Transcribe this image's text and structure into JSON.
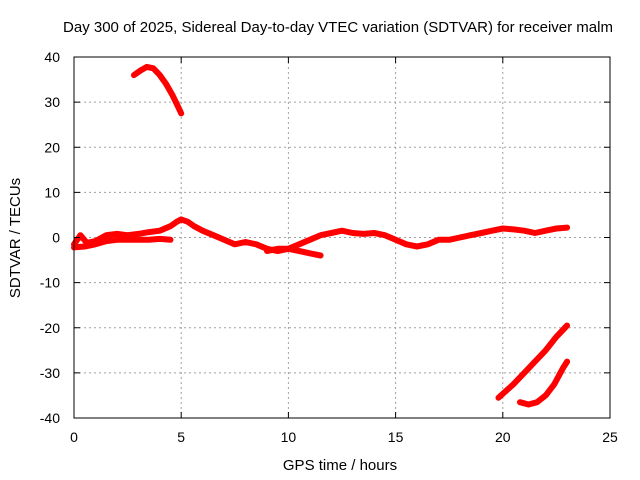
{
  "chart_data": {
    "type": "line",
    "title": "Day 300 of 2025, Sidereal Day-to-day VTEC variation (SDTVAR) for receiver malm",
    "xlabel": "GPS time / hours",
    "ylabel": "SDTVAR / TECUs",
    "xlim": [
      0,
      25
    ],
    "ylim": [
      -40,
      40
    ],
    "xticks": [
      0,
      5,
      10,
      15,
      20,
      25
    ],
    "yticks": [
      -40,
      -30,
      -20,
      -10,
      0,
      10,
      20,
      30,
      40
    ],
    "grid": true,
    "color": "#ff0000",
    "series": [
      {
        "name": "main-trace",
        "points": [
          [
            0.0,
            -1.5
          ],
          [
            0.3,
            0.5
          ],
          [
            0.6,
            -1.2
          ],
          [
            1.0,
            -0.8
          ],
          [
            1.5,
            0.5
          ],
          [
            2.0,
            0.8
          ],
          [
            2.5,
            0.5
          ],
          [
            3.0,
            0.8
          ],
          [
            3.5,
            1.2
          ],
          [
            4.0,
            1.5
          ],
          [
            4.5,
            2.5
          ],
          [
            4.8,
            3.5
          ],
          [
            5.0,
            4.0
          ],
          [
            5.3,
            3.5
          ],
          [
            5.6,
            2.5
          ],
          [
            6.0,
            1.5
          ],
          [
            6.5,
            0.5
          ],
          [
            7.0,
            -0.5
          ],
          [
            7.5,
            -1.5
          ],
          [
            8.0,
            -1.0
          ],
          [
            8.5,
            -1.5
          ],
          [
            9.0,
            -2.5
          ],
          [
            9.5,
            -3.0
          ],
          [
            10.0,
            -2.5
          ],
          [
            10.5,
            -1.5
          ],
          [
            11.0,
            -0.5
          ],
          [
            11.5,
            0.5
          ],
          [
            12.0,
            1.0
          ],
          [
            12.5,
            1.5
          ],
          [
            13.0,
            1.0
          ],
          [
            13.5,
            0.8
          ],
          [
            14.0,
            1.0
          ],
          [
            14.5,
            0.5
          ],
          [
            15.0,
            -0.5
          ],
          [
            15.5,
            -1.5
          ],
          [
            16.0,
            -2.0
          ],
          [
            16.5,
            -1.5
          ],
          [
            17.0,
            -0.5
          ],
          [
            17.5,
            -0.5
          ],
          [
            18.0,
            0.0
          ],
          [
            18.5,
            0.5
          ],
          [
            19.0,
            1.0
          ],
          [
            19.5,
            1.5
          ],
          [
            20.0,
            2.0
          ],
          [
            20.5,
            1.8
          ],
          [
            21.0,
            1.5
          ],
          [
            21.5,
            1.0
          ],
          [
            22.0,
            1.5
          ],
          [
            22.5,
            2.0
          ],
          [
            23.0,
            2.2
          ]
        ]
      },
      {
        "name": "early-dip",
        "points": [
          [
            0.0,
            -2.2
          ],
          [
            0.5,
            -2.0
          ],
          [
            1.0,
            -1.5
          ],
          [
            1.5,
            -0.8
          ],
          [
            2.0,
            -0.5
          ],
          [
            2.5,
            -0.5
          ],
          [
            3.0,
            -0.5
          ],
          [
            3.5,
            -0.5
          ],
          [
            4.0,
            -0.3
          ],
          [
            4.5,
            -0.5
          ]
        ]
      },
      {
        "name": "midday-tail",
        "points": [
          [
            9.0,
            -3.0
          ],
          [
            9.5,
            -2.5
          ],
          [
            10.0,
            -2.5
          ],
          [
            10.5,
            -3.0
          ],
          [
            11.0,
            -3.5
          ],
          [
            11.5,
            -4.0
          ]
        ]
      },
      {
        "name": "upper-arc",
        "points": [
          [
            2.8,
            36.0
          ],
          [
            3.1,
            37.0
          ],
          [
            3.4,
            37.8
          ],
          [
            3.7,
            37.5
          ],
          [
            4.0,
            36.0
          ],
          [
            4.3,
            34.0
          ],
          [
            4.6,
            31.5
          ],
          [
            4.85,
            29.0
          ],
          [
            5.0,
            27.5
          ]
        ]
      },
      {
        "name": "lower-ramp",
        "points": [
          [
            19.8,
            -35.5
          ],
          [
            20.5,
            -32.5
          ],
          [
            21.0,
            -30.0
          ],
          [
            21.5,
            -27.5
          ],
          [
            22.0,
            -25.0
          ],
          [
            22.5,
            -22.0
          ],
          [
            23.0,
            -19.5
          ]
        ]
      },
      {
        "name": "lower-hook",
        "points": [
          [
            20.8,
            -36.5
          ],
          [
            21.2,
            -37.0
          ],
          [
            21.6,
            -36.5
          ],
          [
            22.0,
            -35.0
          ],
          [
            22.4,
            -32.5
          ],
          [
            22.8,
            -29.0
          ],
          [
            23.0,
            -27.5
          ]
        ]
      }
    ]
  }
}
